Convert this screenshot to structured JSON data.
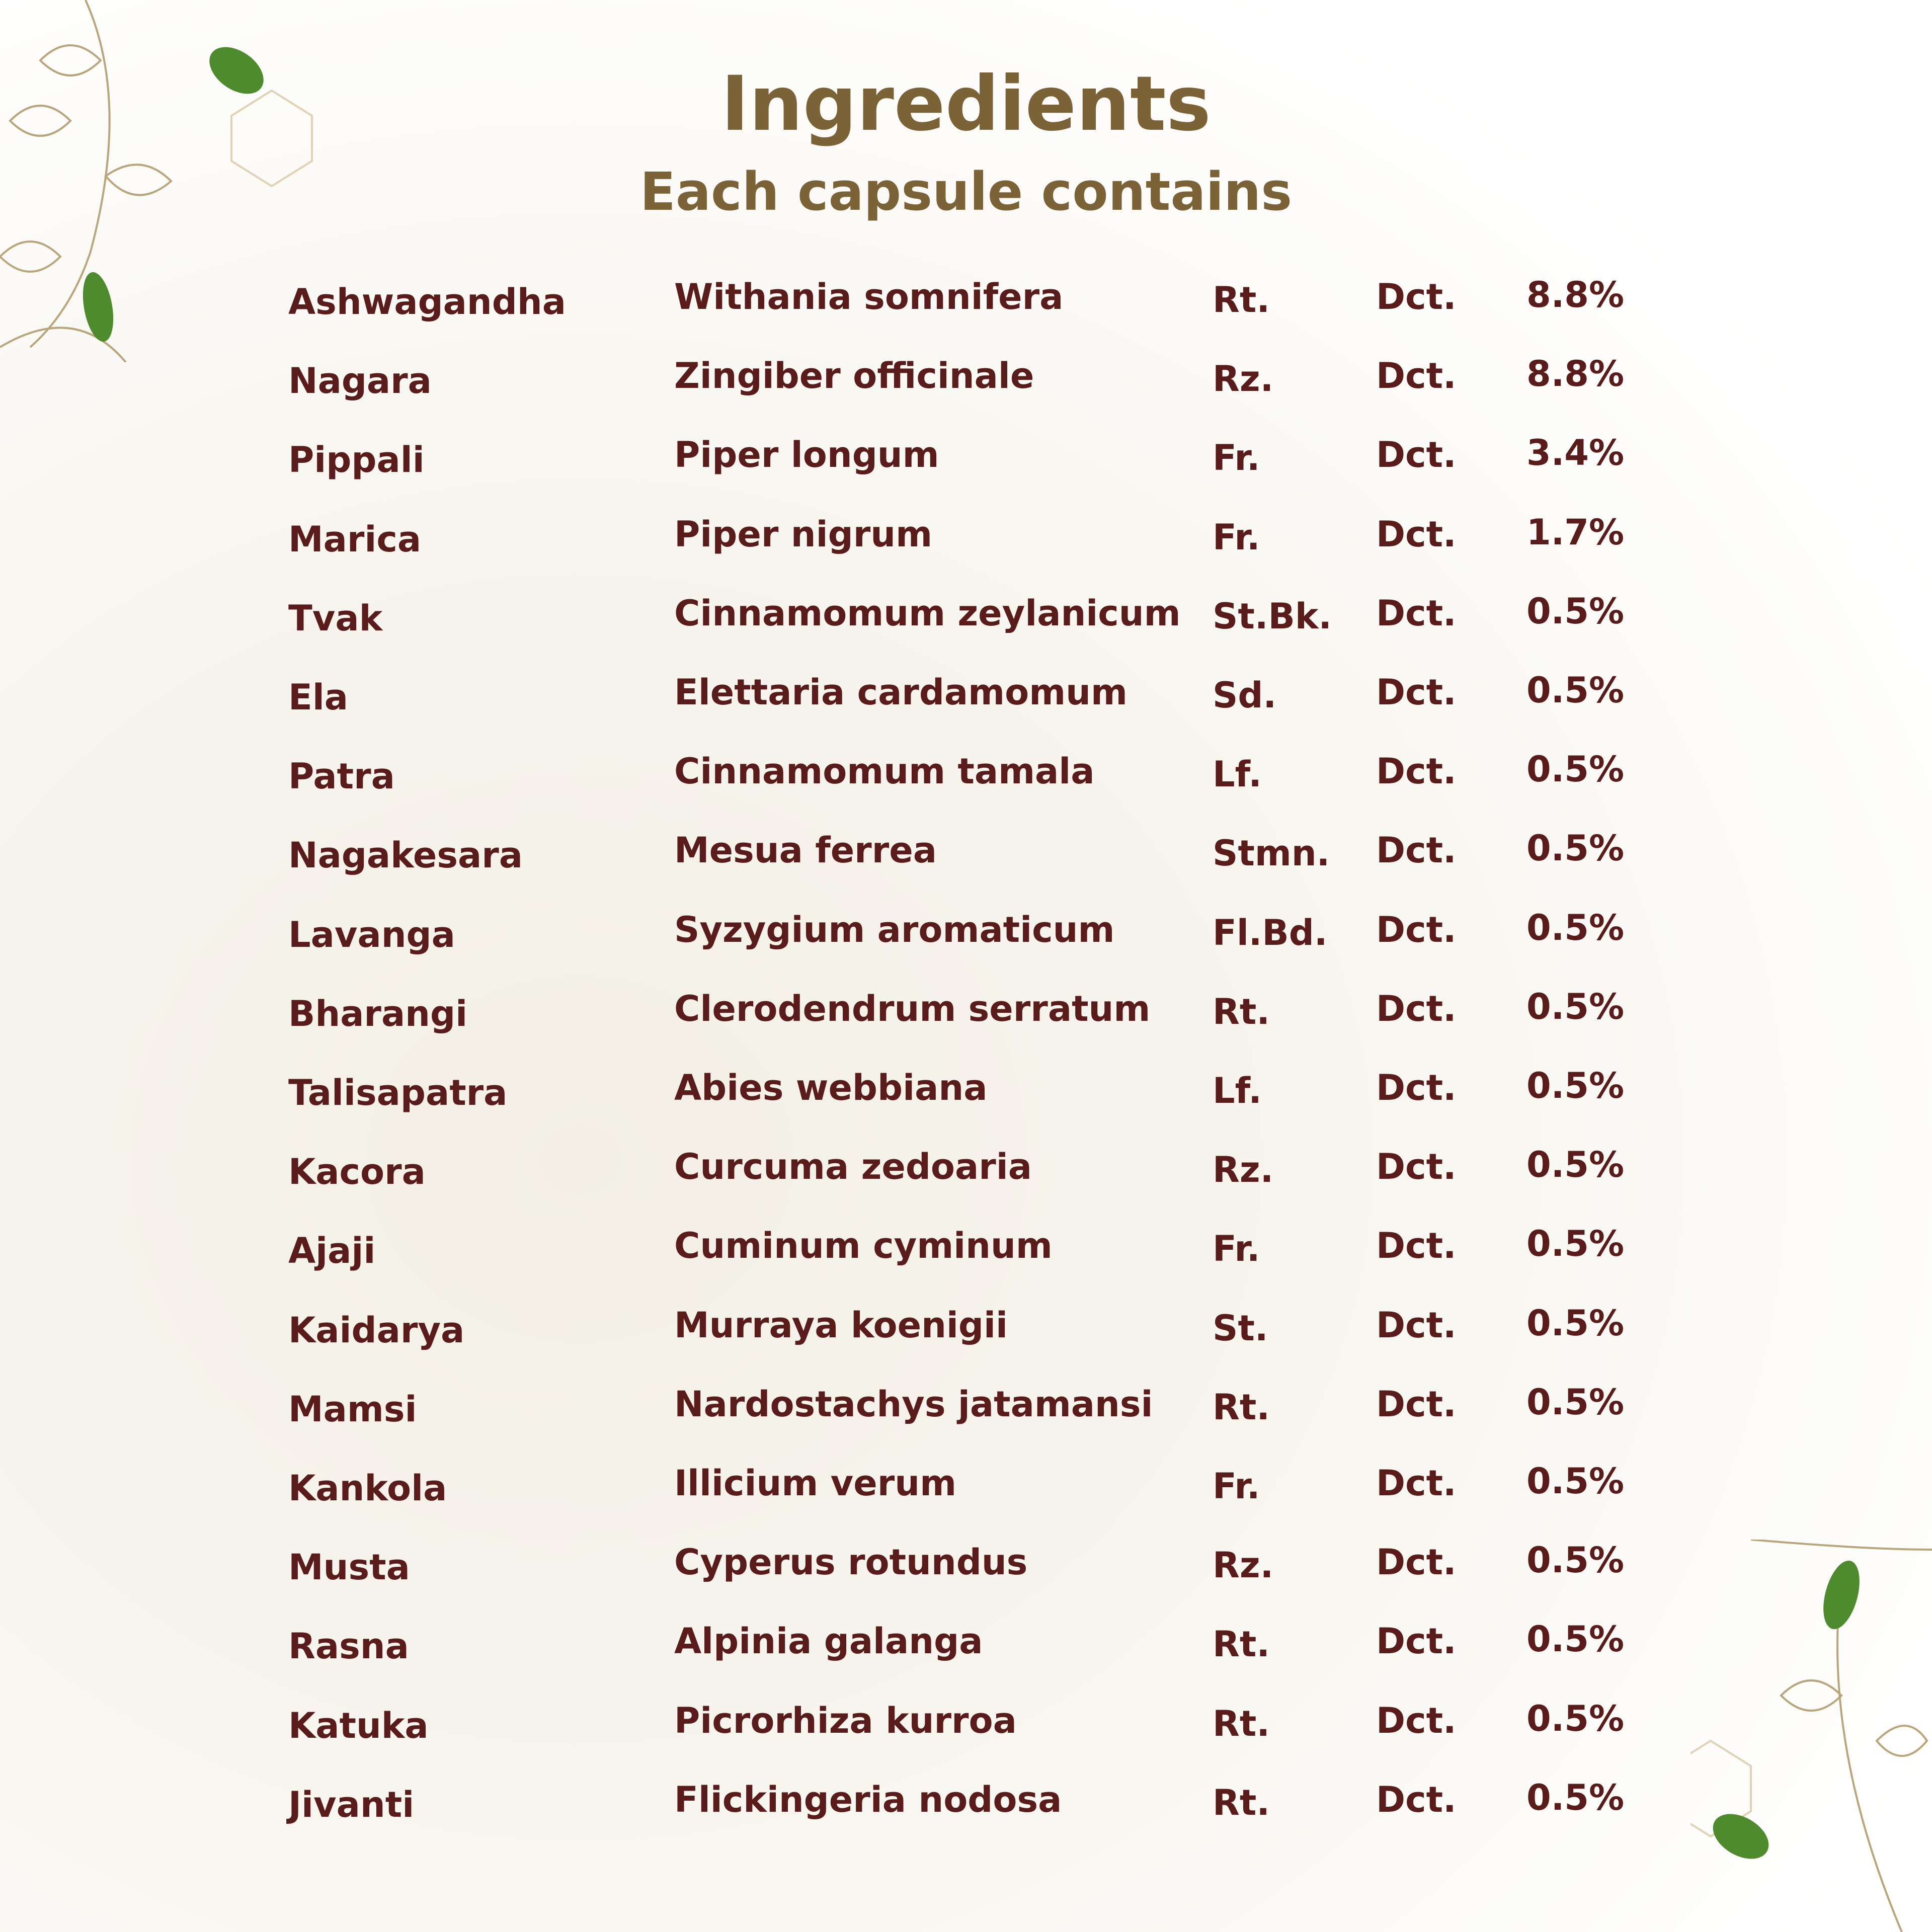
{
  "header": {
    "title": "Ingredients",
    "subtitle": "Each capsule contains"
  },
  "table": {
    "rows": [
      [
        "Ashwagandha",
        "Withania somnifera",
        "Rt.",
        "Dct.",
        "8.8%"
      ],
      [
        "Nagara",
        "Zingiber officinale",
        "Rz.",
        "Dct.",
        "8.8%"
      ],
      [
        "Pippali",
        "Piper longum",
        "Fr.",
        "Dct.",
        "3.4%"
      ],
      [
        "Marica",
        "Piper nigrum",
        "Fr.",
        "Dct.",
        "1.7%"
      ],
      [
        "Tvak",
        "Cinnamomum zeylanicum",
        "St.Bk.",
        "Dct.",
        "0.5%"
      ],
      [
        "Ela",
        "Elettaria cardamomum",
        "Sd.",
        "Dct.",
        "0.5%"
      ],
      [
        "Patra",
        "Cinnamomum tamala",
        "Lf.",
        "Dct.",
        "0.5%"
      ],
      [
        "Nagakesara",
        "Mesua ferrea",
        "Stmn.",
        "Dct.",
        "0.5%"
      ],
      [
        "Lavanga",
        "Syzygium aromaticum",
        "Fl.Bd.",
        "Dct.",
        "0.5%"
      ],
      [
        "Bharangi",
        "Clerodendrum serratum",
        "Rt.",
        "Dct.",
        "0.5%"
      ],
      [
        "Talisapatra",
        "Abies webbiana",
        "Lf.",
        "Dct.",
        "0.5%"
      ],
      [
        "Kacora",
        "Curcuma zedoaria",
        "Rz.",
        "Dct.",
        "0.5%"
      ],
      [
        "Ajaji",
        "Cuminum cyminum",
        "Fr.",
        "Dct.",
        "0.5%"
      ],
      [
        "Kaidarya",
        "Murraya koenigii",
        "St.",
        "Dct.",
        "0.5%"
      ],
      [
        "Mamsi",
        "Nardostachys jatamansi",
        "Rt.",
        "Dct.",
        "0.5%"
      ],
      [
        "Kankola",
        "Illicium verum",
        "Fr.",
        "Dct.",
        "0.5%"
      ],
      [
        "Musta",
        "Cyperus rotundus",
        "Rz.",
        "Dct.",
        "0.5%"
      ],
      [
        "Rasna",
        "Alpinia galanga",
        "Rt.",
        "Dct.",
        "0.5%"
      ],
      [
        "Katuka",
        "Picrorhiza kurroa",
        "Rt.",
        "Dct.",
        "0.5%"
      ],
      [
        "Jivanti",
        "Flickingeria nodosa",
        "Rt.",
        "Dct.",
        "0.5%"
      ]
    ]
  }
}
